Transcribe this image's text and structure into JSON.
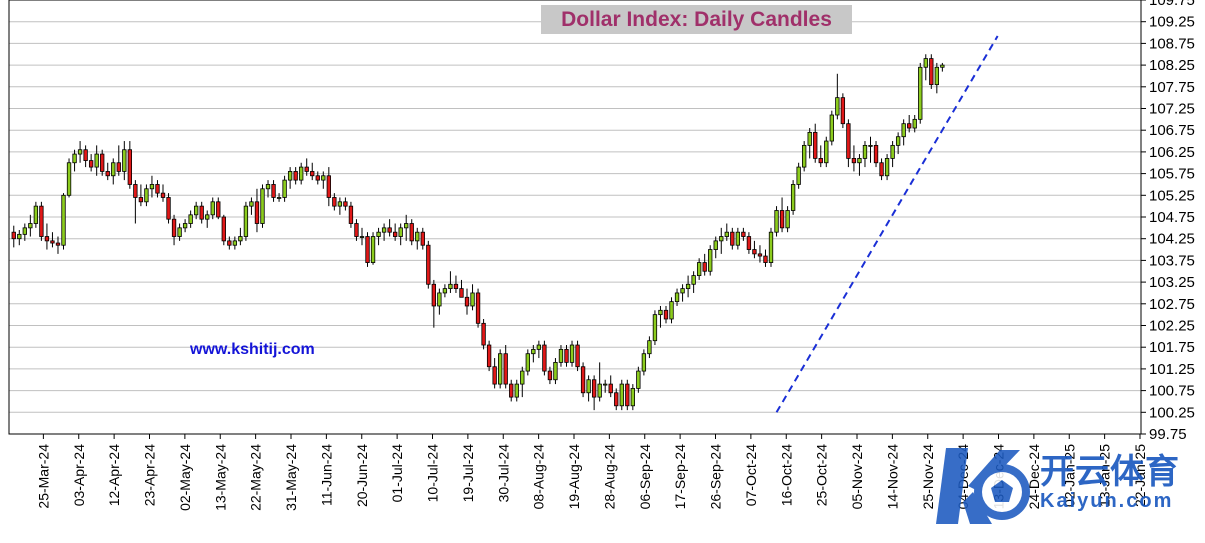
{
  "chart_data": {
    "type": "candlestick",
    "title": "Dollar Index:  Daily Candles",
    "ylim": [
      99.75,
      109.75
    ],
    "y_ticks": [
      "109.75",
      "109.25",
      "108.75",
      "108.25",
      "107.75",
      "107.25",
      "106.75",
      "106.25",
      "105.75",
      "105.25",
      "104.75",
      "104.25",
      "103.75",
      "103.25",
      "102.75",
      "102.25",
      "101.75",
      "101.25",
      "100.75",
      "100.25",
      "99.75"
    ],
    "x_ticks": [
      "25-Mar-24",
      "03-Apr-24",
      "12-Apr-24",
      "23-Apr-24",
      "02-May-24",
      "13-May-24",
      "22-May-24",
      "31-May-24",
      "11-Jun-24",
      "20-Jun-24",
      "01-Jul-24",
      "10-Jul-24",
      "19-Jul-24",
      "30-Jul-24",
      "08-Aug-24",
      "19-Aug-24",
      "28-Aug-24",
      "06-Sep-24",
      "17-Sep-24",
      "26-Sep-24",
      "07-Oct-24",
      "16-Oct-24",
      "25-Oct-24",
      "05-Nov-24",
      "14-Nov-24",
      "25-Nov-24",
      "04-Dec-24",
      "13-Dec-24",
      "24-Dec-24",
      "02-Jan-25",
      "13-Jan-25",
      "22-Jan-25"
    ],
    "colors": {
      "up": "#8ccc1e",
      "down": "#e01818",
      "trendline": "#1a2fd6",
      "grid": "#c0c0c0",
      "title_bg": "#c8c8c8",
      "title_text": "#a0306a"
    },
    "candles": [
      [
        104.4,
        104.55,
        104.05,
        104.25
      ],
      [
        104.25,
        104.45,
        104.1,
        104.35
      ],
      [
        104.35,
        104.6,
        104.2,
        104.5
      ],
      [
        104.5,
        104.8,
        104.3,
        104.6
      ],
      [
        104.6,
        105.1,
        104.5,
        105.0
      ],
      [
        105.0,
        105.1,
        104.2,
        104.3
      ],
      [
        104.3,
        104.6,
        104.0,
        104.2
      ],
      [
        104.2,
        104.4,
        104.05,
        104.15
      ],
      [
        104.15,
        104.3,
        103.9,
        104.1
      ],
      [
        104.1,
        105.3,
        104.0,
        105.25
      ],
      [
        105.25,
        106.1,
        105.2,
        106.0
      ],
      [
        106.0,
        106.3,
        105.8,
        106.2
      ],
      [
        106.2,
        106.5,
        106.0,
        106.3
      ],
      [
        106.3,
        106.4,
        105.9,
        106.05
      ],
      [
        106.05,
        106.2,
        105.8,
        105.9
      ],
      [
        105.9,
        106.4,
        105.7,
        106.2
      ],
      [
        106.2,
        106.3,
        105.7,
        105.8
      ],
      [
        105.8,
        106.0,
        105.6,
        105.7
      ],
      [
        105.7,
        106.1,
        105.5,
        106.0
      ],
      [
        106.0,
        106.4,
        105.7,
        105.8
      ],
      [
        105.8,
        106.5,
        105.6,
        106.3
      ],
      [
        106.3,
        106.5,
        105.4,
        105.5
      ],
      [
        105.5,
        105.6,
        104.6,
        105.2
      ],
      [
        105.2,
        105.5,
        105.0,
        105.1
      ],
      [
        105.1,
        105.5,
        105.0,
        105.4
      ],
      [
        105.4,
        105.7,
        105.2,
        105.5
      ],
      [
        105.5,
        105.6,
        105.2,
        105.3
      ],
      [
        105.3,
        105.5,
        105.1,
        105.2
      ],
      [
        105.2,
        105.3,
        104.6,
        104.7
      ],
      [
        104.7,
        104.8,
        104.1,
        104.3
      ],
      [
        104.3,
        104.6,
        104.2,
        104.5
      ],
      [
        104.5,
        104.7,
        104.4,
        104.6
      ],
      [
        104.6,
        104.9,
        104.5,
        104.8
      ],
      [
        104.8,
        105.1,
        104.7,
        105.0
      ],
      [
        105.0,
        105.1,
        104.6,
        104.7
      ],
      [
        104.7,
        104.9,
        104.5,
        104.8
      ],
      [
        104.8,
        105.2,
        104.7,
        105.1
      ],
      [
        105.1,
        105.2,
        104.7,
        104.75
      ],
      [
        104.75,
        104.8,
        104.1,
        104.2
      ],
      [
        104.2,
        104.3,
        104.0,
        104.1
      ],
      [
        104.1,
        104.3,
        104.0,
        104.2
      ],
      [
        104.2,
        104.5,
        104.1,
        104.3
      ],
      [
        104.3,
        105.1,
        104.2,
        105.0
      ],
      [
        105.0,
        105.2,
        104.8,
        105.1
      ],
      [
        105.1,
        105.4,
        104.4,
        104.6
      ],
      [
        104.6,
        105.5,
        104.5,
        105.4
      ],
      [
        105.4,
        105.6,
        105.2,
        105.5
      ],
      [
        105.5,
        105.6,
        105.1,
        105.2
      ],
      [
        105.2,
        105.3,
        105.1,
        105.2
      ],
      [
        105.2,
        105.7,
        105.1,
        105.6
      ],
      [
        105.6,
        105.9,
        105.4,
        105.8
      ],
      [
        105.8,
        105.9,
        105.5,
        105.6
      ],
      [
        105.6,
        106.0,
        105.5,
        105.9
      ],
      [
        105.9,
        106.1,
        105.7,
        105.8
      ],
      [
        105.8,
        106.0,
        105.6,
        105.7
      ],
      [
        105.7,
        105.8,
        105.5,
        105.6
      ],
      [
        105.6,
        105.8,
        105.4,
        105.7
      ],
      [
        105.7,
        105.9,
        105.0,
        105.2
      ],
      [
        105.2,
        105.3,
        104.9,
        105.0
      ],
      [
        105.0,
        105.2,
        104.8,
        105.1
      ],
      [
        105.1,
        105.2,
        104.9,
        105.0
      ],
      [
        105.0,
        105.1,
        104.5,
        104.6
      ],
      [
        104.6,
        104.7,
        104.2,
        104.3
      ],
      [
        104.3,
        104.5,
        104.1,
        104.3
      ],
      [
        104.3,
        104.4,
        103.6,
        103.7
      ],
      [
        103.7,
        104.4,
        103.65,
        104.3
      ],
      [
        104.3,
        104.5,
        104.1,
        104.4
      ],
      [
        104.4,
        104.6,
        104.2,
        104.5
      ],
      [
        104.5,
        104.7,
        104.3,
        104.4
      ],
      [
        104.4,
        104.6,
        104.2,
        104.3
      ],
      [
        104.3,
        104.6,
        104.1,
        104.5
      ],
      [
        104.5,
        104.8,
        104.2,
        104.6
      ],
      [
        104.6,
        104.7,
        104.1,
        104.2
      ],
      [
        104.2,
        104.5,
        104.0,
        104.4
      ],
      [
        104.4,
        104.5,
        104.0,
        104.1
      ],
      [
        104.1,
        104.2,
        103.1,
        103.2
      ],
      [
        103.2,
        103.3,
        102.2,
        102.7
      ],
      [
        102.7,
        103.1,
        102.5,
        103.0
      ],
      [
        103.0,
        103.2,
        102.9,
        103.1
      ],
      [
        103.1,
        103.5,
        103.0,
        103.2
      ],
      [
        103.2,
        103.4,
        103.0,
        103.1
      ],
      [
        103.1,
        103.3,
        102.9,
        102.9
      ],
      [
        102.9,
        103.1,
        102.5,
        102.7
      ],
      [
        102.7,
        103.2,
        102.6,
        103.0
      ],
      [
        103.0,
        103.1,
        102.2,
        102.3
      ],
      [
        102.3,
        102.4,
        101.7,
        101.8
      ],
      [
        101.8,
        101.9,
        101.2,
        101.3
      ],
      [
        101.3,
        101.5,
        100.8,
        100.9
      ],
      [
        100.9,
        101.7,
        100.8,
        101.6
      ],
      [
        101.6,
        101.8,
        100.8,
        100.9
      ],
      [
        100.9,
        101.0,
        100.5,
        100.6
      ],
      [
        100.6,
        101.0,
        100.5,
        100.9
      ],
      [
        100.9,
        101.3,
        100.6,
        101.2
      ],
      [
        101.2,
        101.7,
        101.1,
        101.6
      ],
      [
        101.6,
        101.8,
        101.4,
        101.7
      ],
      [
        101.7,
        101.9,
        101.5,
        101.8
      ],
      [
        101.8,
        101.9,
        101.1,
        101.2
      ],
      [
        101.2,
        101.3,
        100.9,
        101.0
      ],
      [
        101.0,
        101.5,
        100.9,
        101.4
      ],
      [
        101.4,
        101.8,
        101.3,
        101.7
      ],
      [
        101.7,
        101.8,
        101.3,
        101.4
      ],
      [
        101.4,
        101.9,
        101.3,
        101.8
      ],
      [
        101.8,
        101.9,
        101.2,
        101.3
      ],
      [
        101.3,
        101.4,
        100.6,
        100.7
      ],
      [
        100.7,
        101.1,
        100.5,
        101.0
      ],
      [
        101.0,
        101.1,
        100.3,
        100.6
      ],
      [
        100.6,
        101.4,
        100.5,
        100.9
      ],
      [
        100.9,
        101.0,
        100.7,
        100.9
      ],
      [
        100.9,
        101.1,
        100.6,
        100.7
      ],
      [
        100.7,
        100.8,
        100.3,
        100.4
      ],
      [
        100.4,
        101.0,
        100.3,
        100.9
      ],
      [
        100.9,
        101.0,
        100.3,
        100.4
      ],
      [
        100.4,
        100.9,
        100.3,
        100.8
      ],
      [
        100.8,
        101.3,
        100.7,
        101.2
      ],
      [
        101.2,
        101.7,
        101.1,
        101.6
      ],
      [
        101.6,
        102.0,
        101.5,
        101.9
      ],
      [
        101.9,
        102.6,
        101.8,
        102.5
      ],
      [
        102.5,
        102.7,
        102.2,
        102.6
      ],
      [
        102.6,
        102.7,
        102.3,
        102.4
      ],
      [
        102.4,
        102.9,
        102.3,
        102.8
      ],
      [
        102.8,
        103.1,
        102.7,
        103.0
      ],
      [
        103.0,
        103.2,
        102.8,
        103.1
      ],
      [
        103.1,
        103.4,
        102.9,
        103.2
      ],
      [
        103.2,
        103.5,
        103.0,
        103.4
      ],
      [
        103.4,
        103.8,
        103.3,
        103.7
      ],
      [
        103.7,
        103.9,
        103.4,
        103.5
      ],
      [
        103.5,
        104.1,
        103.4,
        104.0
      ],
      [
        104.0,
        104.3,
        103.8,
        104.2
      ],
      [
        104.2,
        104.5,
        103.9,
        104.3
      ],
      [
        104.3,
        104.6,
        104.2,
        104.4
      ],
      [
        104.4,
        104.5,
        104.0,
        104.1
      ],
      [
        104.1,
        104.5,
        104.0,
        104.4
      ],
      [
        104.4,
        104.5,
        104.2,
        104.3
      ],
      [
        104.3,
        104.4,
        103.9,
        104.0
      ],
      [
        104.0,
        104.2,
        103.8,
        103.9
      ],
      [
        103.9,
        104.1,
        103.7,
        103.85
      ],
      [
        103.85,
        104.0,
        103.6,
        103.7
      ],
      [
        103.7,
        104.5,
        103.6,
        104.4
      ],
      [
        104.4,
        105.0,
        104.3,
        104.9
      ],
      [
        104.9,
        105.2,
        104.4,
        104.5
      ],
      [
        104.5,
        105.0,
        104.4,
        104.9
      ],
      [
        104.9,
        105.6,
        104.8,
        105.5
      ],
      [
        105.5,
        106.0,
        105.4,
        105.9
      ],
      [
        105.9,
        106.5,
        105.8,
        106.4
      ],
      [
        106.4,
        106.8,
        106.1,
        106.7
      ],
      [
        106.7,
        106.9,
        106.0,
        106.1
      ],
      [
        106.1,
        106.4,
        105.9,
        106.0
      ],
      [
        106.0,
        106.6,
        105.9,
        106.5
      ],
      [
        106.5,
        107.2,
        106.4,
        107.1
      ],
      [
        107.1,
        108.05,
        107.0,
        107.5
      ],
      [
        107.5,
        107.6,
        106.8,
        106.9
      ],
      [
        106.9,
        107.0,
        105.9,
        106.1
      ],
      [
        106.1,
        106.4,
        105.8,
        106.0
      ],
      [
        106.0,
        106.2,
        105.7,
        106.1
      ],
      [
        106.1,
        106.5,
        105.9,
        106.4
      ],
      [
        106.4,
        106.6,
        106.0,
        106.4
      ],
      [
        106.4,
        106.5,
        105.9,
        106.0
      ],
      [
        106.0,
        106.1,
        105.6,
        105.7
      ],
      [
        105.7,
        106.2,
        105.6,
        106.1
      ],
      [
        106.1,
        106.5,
        105.9,
        106.4
      ],
      [
        106.4,
        106.7,
        106.2,
        106.6
      ],
      [
        106.6,
        107.0,
        106.4,
        106.9
      ],
      [
        106.9,
        107.1,
        106.7,
        106.8
      ],
      [
        106.8,
        107.1,
        106.7,
        107.0
      ],
      [
        107.0,
        108.3,
        106.9,
        108.2
      ],
      [
        108.2,
        108.5,
        107.9,
        108.4
      ],
      [
        108.4,
        108.5,
        107.7,
        107.8
      ],
      [
        107.8,
        108.3,
        107.6,
        108.2
      ],
      [
        108.2,
        108.3,
        108.1,
        108.25
      ]
    ],
    "trendline": [
      [
        138,
        100.25
      ],
      [
        178,
        108.92
      ]
    ]
  },
  "watermark": {
    "name_cn": "开云体育",
    "name_en": "Kaiyun.com"
  },
  "site_link": "www.kshitij.com"
}
